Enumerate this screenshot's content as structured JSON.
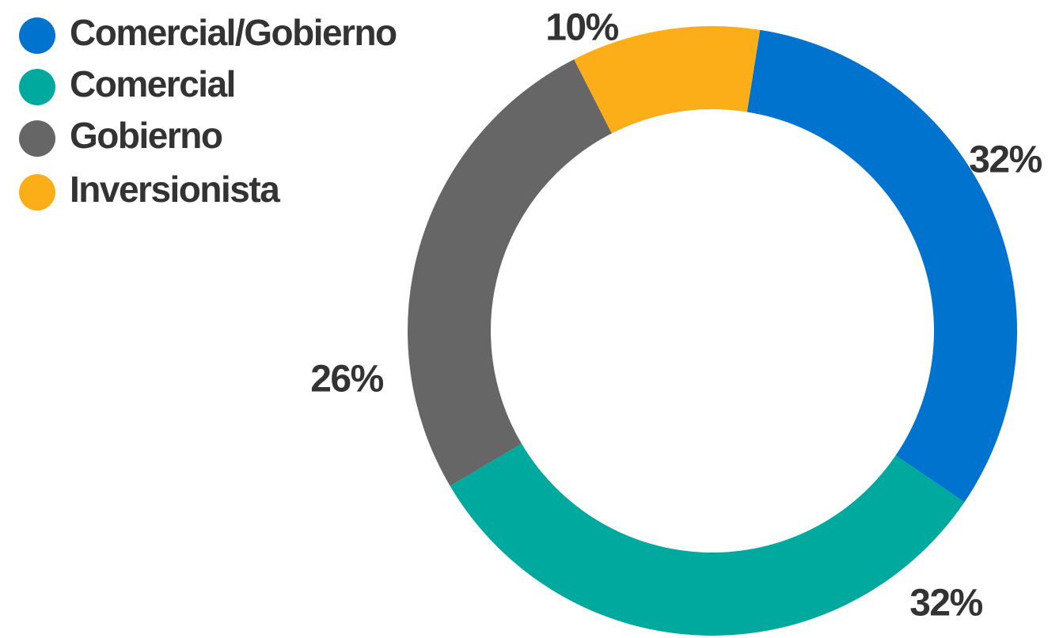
{
  "chart_data": {
    "type": "donut",
    "categories": [
      "Comercial/Gobierno",
      "Comercial",
      "Gobierno",
      "Inversionista"
    ],
    "values": [
      32,
      32,
      26,
      10
    ],
    "value_labels": [
      "32%",
      "32%",
      "26%",
      "10%"
    ],
    "colors": [
      "#0073cf",
      "#00a99d",
      "#666666",
      "#fbae17"
    ],
    "legend": "top-left"
  }
}
